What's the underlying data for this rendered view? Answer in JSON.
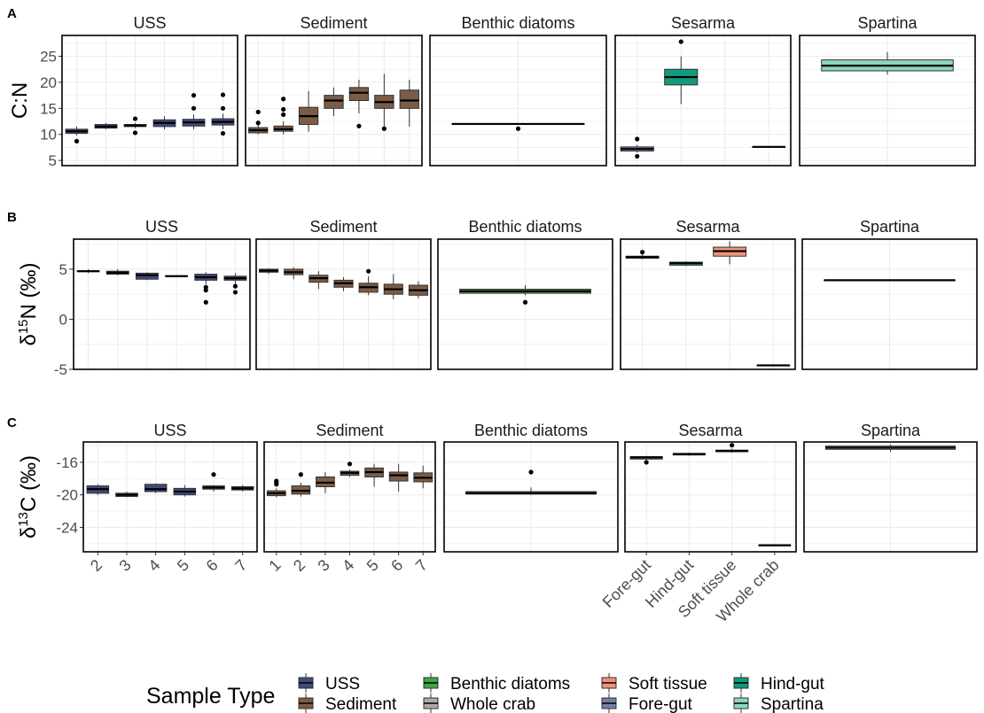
{
  "figure": {
    "legend_title": "Sample Type",
    "legend": [
      {
        "label": "USS",
        "color": "#414A7B"
      },
      {
        "label": "Sediment",
        "color": "#7A5C47"
      },
      {
        "label": "Benthic diatoms",
        "color": "#3FA644"
      },
      {
        "label": "Whole crab",
        "color": "#B4A99C"
      },
      {
        "label": "Soft tissue",
        "color": "#F0937A"
      },
      {
        "label": "Fore-gut",
        "color": "#7381A6"
      },
      {
        "label": "Hind-gut",
        "color": "#119A7B"
      },
      {
        "label": "Spartina",
        "color": "#8BD6C2"
      }
    ]
  },
  "chart_data": [
    {
      "type": "box",
      "panel_label": "A",
      "ylabel": "C:N",
      "ylim": [
        4,
        29
      ],
      "y_ticks": [
        5,
        10,
        15,
        20,
        25
      ],
      "facets": [
        {
          "title": "USS",
          "categories": [
            "2",
            "3",
            "4",
            "5",
            "6",
            "7"
          ],
          "boxes": [
            {
              "cat": "2",
              "min": 9.8,
              "q1": 10.2,
              "median": 10.6,
              "q3": 11.0,
              "max": 11.5,
              "outliers": [
                8.7
              ],
              "color": "#414A7B"
            },
            {
              "cat": "3",
              "min": 11.0,
              "q1": 11.2,
              "median": 11.5,
              "q3": 11.9,
              "max": 12.2,
              "outliers": [],
              "color": "#414A7B"
            },
            {
              "cat": "4",
              "min": 11.2,
              "q1": 11.5,
              "median": 11.7,
              "q3": 11.9,
              "max": 12.2,
              "outliers": [
                13.0,
                10.3
              ],
              "color": "#414A7B"
            },
            {
              "cat": "5",
              "min": 11.0,
              "q1": 11.5,
              "median": 12.2,
              "q3": 12.8,
              "max": 13.5,
              "outliers": [],
              "color": "#414A7B"
            },
            {
              "cat": "6",
              "min": 11.0,
              "q1": 11.6,
              "median": 12.3,
              "q3": 12.9,
              "max": 13.8,
              "outliers": [
                17.5,
                15.0
              ],
              "color": "#414A7B"
            },
            {
              "cat": "7",
              "min": 11.0,
              "q1": 11.8,
              "median": 12.4,
              "q3": 13.0,
              "max": 14.0,
              "outliers": [
                17.6,
                15.0,
                10.2
              ],
              "color": "#414A7B"
            }
          ]
        },
        {
          "title": "Sediment",
          "categories": [
            "1",
            "2",
            "3",
            "4",
            "5",
            "6",
            "7"
          ],
          "boxes": [
            {
              "cat": "1",
              "min": 10.0,
              "q1": 10.3,
              "median": 10.8,
              "q3": 11.3,
              "max": 12.0,
              "outliers": [
                14.3,
                12.2
              ],
              "color": "#7A5C47"
            },
            {
              "cat": "2",
              "min": 10.0,
              "q1": 10.6,
              "median": 11.0,
              "q3": 11.6,
              "max": 12.5,
              "outliers": [
                16.8,
                14.8,
                13.8
              ],
              "color": "#7A5C47"
            },
            {
              "cat": "3",
              "min": 10.5,
              "q1": 11.9,
              "median": 13.5,
              "q3": 15.2,
              "max": 18.3,
              "outliers": [],
              "color": "#7A5C47"
            },
            {
              "cat": "4",
              "min": 13.5,
              "q1": 15.0,
              "median": 16.5,
              "q3": 17.5,
              "max": 19.0,
              "outliers": [],
              "color": "#7A5C47"
            },
            {
              "cat": "5",
              "min": 14.0,
              "q1": 16.5,
              "median": 18.0,
              "q3": 19.0,
              "max": 20.5,
              "outliers": [
                11.6
              ],
              "color": "#7A5C47"
            },
            {
              "cat": "6",
              "min": 11.5,
              "q1": 15.0,
              "median": 16.2,
              "q3": 17.5,
              "max": 21.6,
              "outliers": [
                11.1
              ],
              "color": "#7A5C47"
            },
            {
              "cat": "7",
              "min": 11.5,
              "q1": 15.0,
              "median": 16.5,
              "q3": 18.5,
              "max": 20.5,
              "outliers": [],
              "color": "#7A5C47"
            }
          ]
        },
        {
          "title": "Benthic diatoms",
          "categories": [],
          "boxes": [
            {
              "cat": "",
              "min": 12.0,
              "q1": 12.0,
              "median": 12.0,
              "q3": 12.0,
              "max": 12.0,
              "outliers": [
                11.1
              ],
              "color": "#3FA644"
            }
          ]
        },
        {
          "title": "Sesarma",
          "categories": [
            "Fore-gut",
            "Hind-gut",
            "Soft tissue",
            "Whole crab"
          ],
          "boxes": [
            {
              "cat": "Fore-gut",
              "min": 6.5,
              "q1": 6.8,
              "median": 7.2,
              "q3": 7.6,
              "max": 8.0,
              "outliers": [
                9.1,
                5.8
              ],
              "color": "#7381A6"
            },
            {
              "cat": "Hind-gut",
              "min": 15.8,
              "q1": 19.5,
              "median": 21.0,
              "q3": 22.5,
              "max": 25.0,
              "outliers": [
                27.8
              ],
              "color": "#119A7B"
            },
            {
              "cat": "Soft tissue",
              "min": null,
              "q1": null,
              "median": null,
              "q3": null,
              "max": null,
              "outliers": [],
              "color": "#F0937A"
            },
            {
              "cat": "Whole crab",
              "min": 7.6,
              "q1": 7.6,
              "median": 7.6,
              "q3": 7.6,
              "max": 7.6,
              "outliers": [],
              "color": "#B4A99C"
            }
          ]
        },
        {
          "title": "Spartina",
          "categories": [],
          "boxes": [
            {
              "cat": "",
              "min": 21.5,
              "q1": 22.2,
              "median": 23.2,
              "q3": 24.3,
              "max": 25.8,
              "outliers": [],
              "color": "#8BD6C2"
            }
          ]
        }
      ]
    },
    {
      "type": "box",
      "panel_label": "B",
      "ylabel_prefix": "δ",
      "ylabel_sup": "15",
      "ylabel_rest": "N (‰)",
      "ylim": [
        -5,
        8
      ],
      "y_ticks": [
        -5,
        0,
        5
      ],
      "facets": [
        {
          "title": "USS",
          "categories": [
            "2",
            "3",
            "4",
            "5",
            "6",
            "7"
          ],
          "boxes": [
            {
              "cat": "2",
              "min": 4.6,
              "q1": 4.75,
              "median": 4.8,
              "q3": 4.85,
              "max": 5.0,
              "outliers": [],
              "color": "#414A7B"
            },
            {
              "cat": "3",
              "min": 4.4,
              "q1": 4.5,
              "median": 4.65,
              "q3": 4.8,
              "max": 5.0,
              "outliers": [],
              "color": "#414A7B"
            },
            {
              "cat": "4",
              "min": 3.9,
              "q1": 4.0,
              "median": 4.4,
              "q3": 4.6,
              "max": 4.7,
              "outliers": [],
              "color": "#414A7B"
            },
            {
              "cat": "5",
              "min": 4.2,
              "q1": 4.25,
              "median": 4.3,
              "q3": 4.35,
              "max": 4.4,
              "outliers": [],
              "color": "#414A7B"
            },
            {
              "cat": "6",
              "min": 3.5,
              "q1": 3.9,
              "median": 4.2,
              "q3": 4.5,
              "max": 4.7,
              "outliers": [
                3.2,
                2.9,
                1.7
              ],
              "color": "#414A7B"
            },
            {
              "cat": "7",
              "min": 3.4,
              "q1": 3.9,
              "median": 4.1,
              "q3": 4.3,
              "max": 4.6,
              "outliers": [
                3.3,
                2.7
              ],
              "color": "#414A7B"
            }
          ]
        },
        {
          "title": "Sediment",
          "categories": [
            "1",
            "2",
            "3",
            "4",
            "5",
            "6",
            "7"
          ],
          "boxes": [
            {
              "cat": "1",
              "min": 4.5,
              "q1": 4.7,
              "median": 4.85,
              "q3": 5.0,
              "max": 5.1,
              "outliers": [],
              "color": "#7A5C47"
            },
            {
              "cat": "2",
              "min": 4.0,
              "q1": 4.45,
              "median": 4.7,
              "q3": 5.0,
              "max": 5.2,
              "outliers": [],
              "color": "#7A5C47"
            },
            {
              "cat": "3",
              "min": 3.0,
              "q1": 3.7,
              "median": 4.1,
              "q3": 4.4,
              "max": 4.8,
              "outliers": [],
              "color": "#7A5C47"
            },
            {
              "cat": "4",
              "min": 2.8,
              "q1": 3.2,
              "median": 3.6,
              "q3": 3.9,
              "max": 4.2,
              "outliers": [],
              "color": "#7A5C47"
            },
            {
              "cat": "5",
              "min": 2.4,
              "q1": 2.7,
              "median": 3.2,
              "q3": 3.6,
              "max": 4.3,
              "outliers": [
                4.8
              ],
              "color": "#7A5C47"
            },
            {
              "cat": "6",
              "min": 2.0,
              "q1": 2.5,
              "median": 3.0,
              "q3": 3.5,
              "max": 4.5,
              "outliers": [],
              "color": "#7A5C47"
            },
            {
              "cat": "7",
              "min": 2.1,
              "q1": 2.4,
              "median": 2.9,
              "q3": 3.4,
              "max": 3.8,
              "outliers": [],
              "color": "#7A5C47"
            }
          ]
        },
        {
          "title": "Benthic diatoms",
          "categories": [],
          "boxes": [
            {
              "cat": "",
              "min": 2.4,
              "q1": 2.6,
              "median": 2.8,
              "q3": 3.0,
              "max": 3.4,
              "outliers": [
                1.7
              ],
              "color": "#3FA644"
            }
          ]
        },
        {
          "title": "Sesarma",
          "categories": [
            "Fore-gut",
            "Hind-gut",
            "Soft tissue",
            "Whole crab"
          ],
          "boxes": [
            {
              "cat": "Fore-gut",
              "min": 6.0,
              "q1": 6.1,
              "median": 6.2,
              "q3": 6.3,
              "max": 6.5,
              "outliers": [
                6.7
              ],
              "color": "#7381A6"
            },
            {
              "cat": "Hind-gut",
              "min": 5.3,
              "q1": 5.4,
              "median": 5.6,
              "q3": 5.7,
              "max": 5.8,
              "outliers": [],
              "color": "#119A7B"
            },
            {
              "cat": "Soft tissue",
              "min": 5.5,
              "q1": 6.3,
              "median": 6.8,
              "q3": 7.2,
              "max": 7.8,
              "outliers": [],
              "color": "#F0937A"
            },
            {
              "cat": "Whole crab",
              "min": -4.6,
              "q1": -4.6,
              "median": -4.6,
              "q3": -4.6,
              "max": -4.6,
              "outliers": [],
              "color": "#B4A99C"
            }
          ]
        },
        {
          "title": "Spartina",
          "categories": [],
          "boxes": [
            {
              "cat": "",
              "min": 3.9,
              "q1": 3.9,
              "median": 3.9,
              "q3": 3.9,
              "max": 3.9,
              "outliers": [],
              "color": "#8BD6C2"
            }
          ]
        }
      ]
    },
    {
      "type": "box",
      "panel_label": "C",
      "ylabel_prefix": "δ",
      "ylabel_sup": "13",
      "ylabel_rest": "C (‰)",
      "ylim": [
        -27,
        -13.5
      ],
      "y_ticks": [
        -24,
        -20,
        -16
      ],
      "facets": [
        {
          "title": "USS",
          "categories": [
            "2",
            "3",
            "4",
            "5",
            "6",
            "7"
          ],
          "boxes": [
            {
              "cat": "2",
              "min": -20.0,
              "q1": -19.8,
              "median": -19.3,
              "q3": -18.9,
              "max": -18.7,
              "outliers": [],
              "color": "#414A7B"
            },
            {
              "cat": "3",
              "min": -20.3,
              "q1": -20.2,
              "median": -20.0,
              "q3": -19.8,
              "max": -19.6,
              "outliers": [],
              "color": "#414A7B"
            },
            {
              "cat": "4",
              "min": -19.8,
              "q1": -19.6,
              "median": -19.3,
              "q3": -18.7,
              "max": -18.6,
              "outliers": [],
              "color": "#414A7B"
            },
            {
              "cat": "5",
              "min": -20.2,
              "q1": -20.0,
              "median": -19.6,
              "q3": -19.2,
              "max": -18.8,
              "outliers": [],
              "color": "#414A7B"
            },
            {
              "cat": "6",
              "min": -19.6,
              "q1": -19.3,
              "median": -19.1,
              "q3": -18.9,
              "max": -18.8,
              "outliers": [
                -17.5
              ],
              "color": "#414A7B"
            },
            {
              "cat": "7",
              "min": -19.6,
              "q1": -19.4,
              "median": -19.2,
              "q3": -19.0,
              "max": -18.8,
              "outliers": [],
              "color": "#414A7B"
            }
          ]
        },
        {
          "title": "Sediment",
          "categories": [
            "1",
            "2",
            "3",
            "4",
            "5",
            "6",
            "7"
          ],
          "boxes": [
            {
              "cat": "1",
              "min": -20.3,
              "q1": -20.1,
              "median": -19.8,
              "q3": -19.5,
              "max": -19.2,
              "outliers": [
                -18.7,
                -18.5,
                -18.3
              ],
              "color": "#7A5C47"
            },
            {
              "cat": "2",
              "min": -20.2,
              "q1": -19.9,
              "median": -19.5,
              "q3": -18.9,
              "max": -18.5,
              "outliers": [
                -17.5
              ],
              "color": "#7A5C47"
            },
            {
              "cat": "3",
              "min": -19.8,
              "q1": -19.0,
              "median": -18.5,
              "q3": -17.8,
              "max": -17.2,
              "outliers": [],
              "color": "#7A5C47"
            },
            {
              "cat": "4",
              "min": -17.8,
              "q1": -17.6,
              "median": -17.3,
              "q3": -17.1,
              "max": -16.9,
              "outliers": [
                -16.2
              ],
              "color": "#7A5C47"
            },
            {
              "cat": "5",
              "min": -19.0,
              "q1": -17.8,
              "median": -17.2,
              "q3": -16.7,
              "max": -16.2,
              "outliers": [],
              "color": "#7A5C47"
            },
            {
              "cat": "6",
              "min": -19.6,
              "q1": -18.3,
              "median": -17.6,
              "q3": -17.2,
              "max": -16.2,
              "outliers": [],
              "color": "#7A5C47"
            },
            {
              "cat": "7",
              "min": -19.2,
              "q1": -18.4,
              "median": -17.9,
              "q3": -17.3,
              "max": -16.4,
              "outliers": [],
              "color": "#7A5C47"
            }
          ]
        },
        {
          "title": "Benthic diatoms",
          "categories": [],
          "boxes": [
            {
              "cat": "",
              "min": -20.0,
              "q1": -19.9,
              "median": -19.8,
              "q3": -19.6,
              "max": -19.1,
              "outliers": [
                -17.2
              ],
              "color": "#3FA644"
            }
          ]
        },
        {
          "title": "Sesarma",
          "categories": [
            "Fore-gut",
            "Hind-gut",
            "Soft tissue",
            "Whole crab"
          ],
          "boxes": [
            {
              "cat": "Fore-gut",
              "min": -15.7,
              "q1": -15.6,
              "median": -15.4,
              "q3": -15.3,
              "max": -15.2,
              "outliers": [
                -16.0
              ],
              "color": "#7381A6"
            },
            {
              "cat": "Hind-gut",
              "min": -15.2,
              "q1": -15.1,
              "median": -15.0,
              "q3": -14.9,
              "max": -14.8,
              "outliers": [],
              "color": "#119A7B"
            },
            {
              "cat": "Soft tissue",
              "min": -14.8,
              "q1": -14.7,
              "median": -14.6,
              "q3": -14.5,
              "max": -14.3,
              "outliers": [
                -13.9
              ],
              "color": "#F0937A"
            },
            {
              "cat": "Whole crab",
              "min": -26.2,
              "q1": -26.2,
              "median": -26.2,
              "q3": -26.2,
              "max": -26.2,
              "outliers": [],
              "color": "#B4A99C"
            }
          ]
        },
        {
          "title": "Spartina",
          "categories": [],
          "boxes": [
            {
              "cat": "",
              "min": -14.7,
              "q1": -14.4,
              "median": -14.2,
              "q3": -14.0,
              "max": -13.8,
              "outliers": [],
              "color": "#8BD6C2"
            }
          ]
        }
      ]
    }
  ]
}
